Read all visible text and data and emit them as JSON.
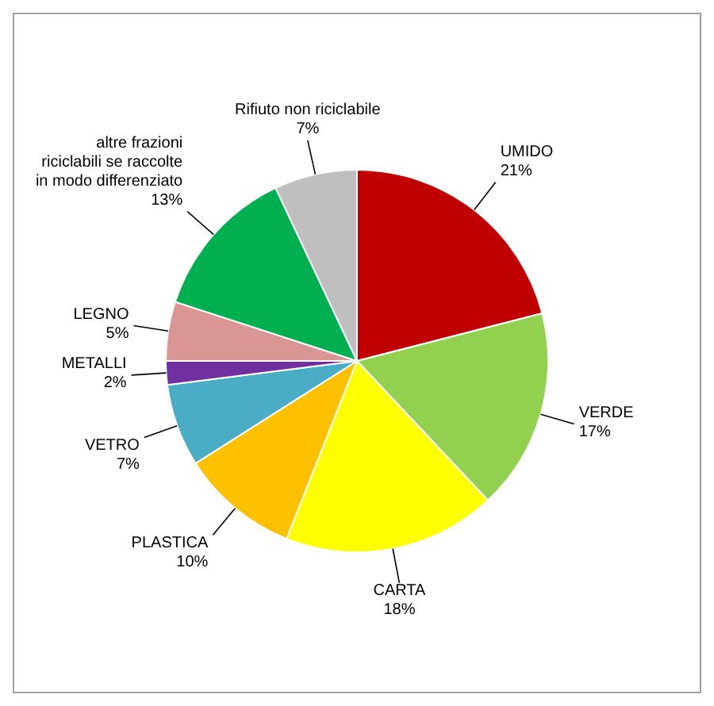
{
  "chart_data": {
    "type": "pie",
    "categories": [
      "UMIDO",
      "VERDE",
      "CARTA",
      "PLASTICA",
      "VETRO",
      "METALLI",
      "LEGNO",
      "altre frazioni riciclabili se raccolte in modo differenziato",
      "Rifiuto non riciclabile"
    ],
    "values": [
      21,
      17,
      18,
      10,
      7,
      2,
      5,
      13,
      7
    ],
    "value_labels": [
      "21%",
      "17%",
      "18%",
      "10%",
      "7%",
      "2%",
      "5%",
      "13%",
      "7%"
    ],
    "colors": [
      "#c00000",
      "#92d050",
      "#ffff00",
      "#ffc000",
      "#4bacc6",
      "#7030a0",
      "#da9694",
      "#00b050",
      "#bfbfbf"
    ],
    "legend": false
  }
}
